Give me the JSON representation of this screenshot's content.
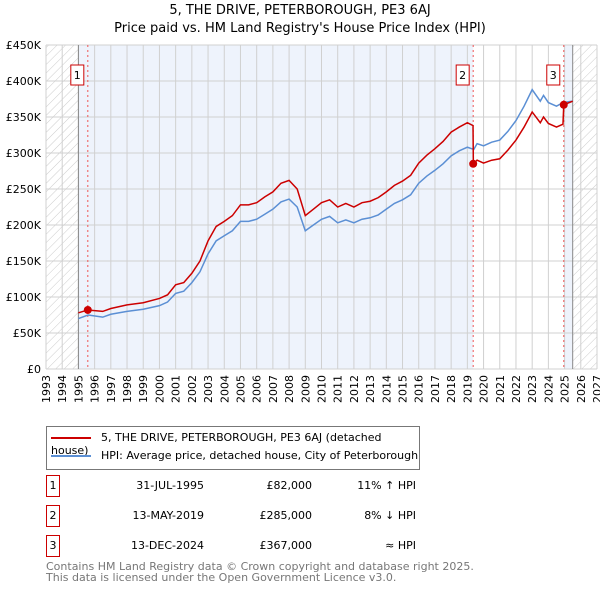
{
  "chart_data": {
    "type": "line",
    "title": "5, THE DRIVE, PETERBOROUGH, PE3 6AJ",
    "subtitle": "Price paid vs. HM Land Registry's House Price Index (HPI)",
    "xlim": [
      1993,
      2027
    ],
    "ylim": [
      0,
      450000
    ],
    "x_ticks": [
      "1993",
      "1994",
      "1995",
      "1996",
      "1997",
      "1998",
      "1999",
      "2000",
      "2001",
      "2002",
      "2003",
      "2004",
      "2005",
      "2006",
      "2007",
      "2008",
      "2009",
      "2010",
      "2011",
      "2012",
      "2013",
      "2014",
      "2015",
      "2016",
      "2017",
      "2018",
      "2019",
      "2020",
      "2021",
      "2022",
      "2023",
      "2024",
      "2025",
      "2026",
      "2027"
    ],
    "y_ticks": [
      {
        "v": 0,
        "label": "£0"
      },
      {
        "v": 50000,
        "label": "£50K"
      },
      {
        "v": 100000,
        "label": "£100K"
      },
      {
        "v": 150000,
        "label": "£150K"
      },
      {
        "v": 200000,
        "label": "£200K"
      },
      {
        "v": 250000,
        "label": "£250K"
      },
      {
        "v": 300000,
        "label": "£300K"
      },
      {
        "v": 350000,
        "label": "£350K"
      },
      {
        "v": 400000,
        "label": "£400K"
      },
      {
        "v": 450000,
        "label": "£450K"
      }
    ],
    "grid": true,
    "series": [
      {
        "name": "5, THE DRIVE, PETERBOROUGH, PE3 6AJ (detached house)",
        "color": "#cc0000",
        "x": [
          1995.0,
          1995.58,
          1996.5,
          1997,
          1998,
          1999,
          2000,
          2000.5,
          2001,
          2001.5,
          2002,
          2002.5,
          2003,
          2003.5,
          2004,
          2004.5,
          2005,
          2005.5,
          2006,
          2006.5,
          2007,
          2007.5,
          2008,
          2008.5,
          2009,
          2009.5,
          2010,
          2010.5,
          2011,
          2011.5,
          2012,
          2012.5,
          2013,
          2013.5,
          2014,
          2014.5,
          2015,
          2015.5,
          2016,
          2016.5,
          2017,
          2017.5,
          2018,
          2018.5,
          2019,
          2019.35,
          2019.37,
          2019.6,
          2020,
          2020.5,
          2021,
          2021.5,
          2022,
          2022.5,
          2023,
          2023.5,
          2023.7,
          2024,
          2024.5,
          2024.9,
          2024.95,
          2025.5
        ],
        "y": [
          78000,
          82000,
          80000,
          84000,
          89000,
          92000,
          98000,
          103000,
          117000,
          120000,
          133000,
          150000,
          178000,
          198000,
          205000,
          213000,
          228000,
          228000,
          231000,
          239000,
          246000,
          258000,
          262000,
          250000,
          213000,
          222000,
          231000,
          235000,
          225000,
          230000,
          225000,
          231000,
          233000,
          238000,
          246000,
          255000,
          261000,
          269000,
          286000,
          297000,
          306000,
          316000,
          329000,
          336000,
          342000,
          338000,
          285000,
          290000,
          286000,
          290000,
          292000,
          304000,
          318000,
          336000,
          357000,
          342000,
          350000,
          341000,
          336000,
          340000,
          367000,
          372000
        ]
      },
      {
        "name": "HPI: Average price, detached house, City of Peterborough",
        "color": "#5b8fd4",
        "x": [
          1995.0,
          1995.6,
          1996.5,
          1997,
          1998,
          1999,
          2000,
          2000.5,
          2001,
          2001.5,
          2002,
          2002.5,
          2003,
          2003.5,
          2004,
          2004.5,
          2005,
          2005.5,
          2006,
          2006.5,
          2007,
          2007.5,
          2008,
          2008.5,
          2009,
          2009.5,
          2010,
          2010.5,
          2011,
          2011.5,
          2012,
          2012.5,
          2013,
          2013.5,
          2014,
          2014.5,
          2015,
          2015.5,
          2016,
          2016.5,
          2017,
          2017.5,
          2018,
          2018.5,
          2019,
          2019.4,
          2019.6,
          2020,
          2020.5,
          2021,
          2021.5,
          2022,
          2022.5,
          2023,
          2023.5,
          2023.7,
          2024,
          2024.5,
          2024.9,
          2025.5
        ],
        "y": [
          70000,
          75000,
          72000,
          76000,
          80000,
          83000,
          88000,
          93000,
          105000,
          108000,
          120000,
          135000,
          160000,
          178000,
          185000,
          192000,
          205000,
          205000,
          208000,
          215000,
          222000,
          232000,
          236000,
          225000,
          192000,
          200000,
          208000,
          212000,
          203000,
          207000,
          203000,
          208000,
          210000,
          214000,
          222000,
          230000,
          235000,
          242000,
          258000,
          268000,
          276000,
          285000,
          296000,
          303000,
          308000,
          305000,
          313000,
          310000,
          315000,
          318000,
          330000,
          345000,
          365000,
          388000,
          372000,
          380000,
          370000,
          365000,
          370000,
          372000
        ]
      }
    ],
    "sales": [
      {
        "n": "1",
        "x": 1995.58,
        "y": 82000,
        "date": "31-JUL-1995",
        "price": "£82,000",
        "hpi": "11% ↑ HPI"
      },
      {
        "n": "2",
        "x": 2019.36,
        "y": 285000,
        "date": "13-MAY-2019",
        "price": "£285,000",
        "hpi": "8% ↓ HPI"
      },
      {
        "n": "3",
        "x": 2024.95,
        "y": 367000,
        "date": "13-DEC-2024",
        "price": "£367,000",
        "hpi": "≈ HPI"
      }
    ]
  },
  "footer": {
    "line1": "Contains HM Land Registry data © Crown copyright and database right 2025.",
    "line2": "This data is licensed under the Open Government Licence v3.0."
  }
}
